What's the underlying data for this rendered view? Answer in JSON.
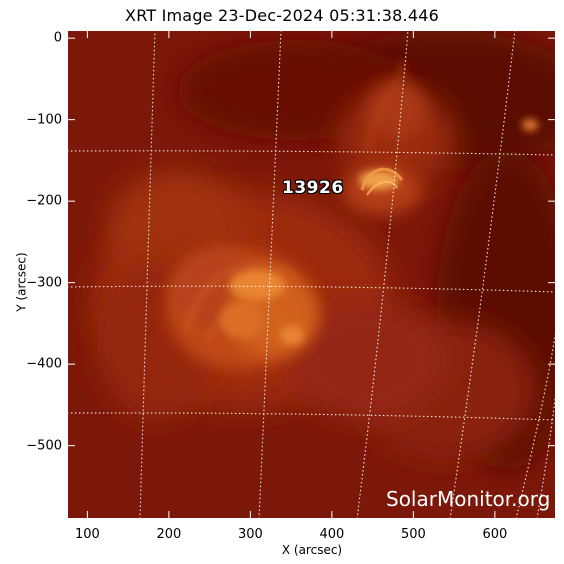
{
  "title": "XRT Image 23-Dec-2024 05:31:38.446",
  "x_axis": {
    "label": "X (arcsec)",
    "range": [
      75,
      675
    ],
    "ticks": [
      100,
      200,
      300,
      400,
      500,
      600
    ],
    "tick_labels": [
      "100",
      "200",
      "300",
      "400",
      "500",
      "600"
    ]
  },
  "y_axis": {
    "label": "Y (arcsec)",
    "range": [
      -590,
      10
    ],
    "ticks": [
      0,
      -100,
      -200,
      -300,
      -400,
      -500
    ],
    "tick_labels": [
      "0",
      "−100",
      "−200",
      "−300",
      "−400",
      "−500"
    ]
  },
  "active_region": {
    "number": "13926",
    "x": 340,
    "y": -190
  },
  "watermark": "SolarMonitor.org",
  "colors": {
    "background_red": "#7a1608",
    "bright_orange": "#e07a28",
    "grid": "#ffffff"
  },
  "grid_visible": true
}
